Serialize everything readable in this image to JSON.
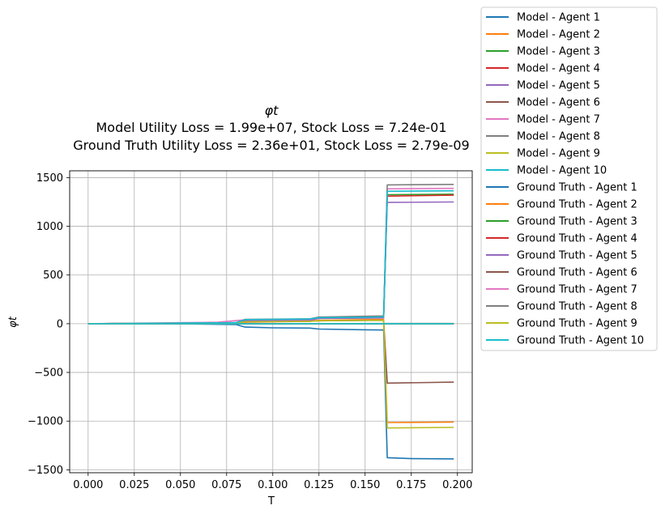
{
  "chart_data": {
    "type": "line",
    "title": "φt",
    "subtitle_lines": [
      "Model Utility Loss = 1.99e+07, Stock Loss = 7.24e-01",
      "Ground Truth Utility Loss = 2.36e+01, Stock Loss = 2.79e-09"
    ],
    "xlabel": "T",
    "ylabel": "φt",
    "xlim": [
      -0.01,
      0.208
    ],
    "ylim": [
      -1530,
      1570
    ],
    "xticks": [
      "0.000",
      "0.025",
      "0.050",
      "0.075",
      "0.100",
      "0.125",
      "0.150",
      "0.175",
      "0.200"
    ],
    "yticks": [
      "−1500",
      "−1000",
      "−500",
      "0",
      "500",
      "1000",
      "1500"
    ],
    "grid": true,
    "legend_position": "outside-right",
    "series": [
      {
        "name": "Model - Agent 1",
        "color": "#1f77b4",
        "points": [
          [
            0,
            0
          ],
          [
            0.05,
            -2
          ],
          [
            0.08,
            -8
          ],
          [
            0.085,
            -35
          ],
          [
            0.1,
            -42
          ],
          [
            0.12,
            -45
          ],
          [
            0.125,
            -55
          ],
          [
            0.15,
            -62
          ],
          [
            0.16,
            -65
          ],
          [
            0.162,
            -1375
          ],
          [
            0.175,
            -1385
          ],
          [
            0.198,
            -1388
          ]
        ]
      },
      {
        "name": "Model - Agent 2",
        "color": "#ff7f0e",
        "points": [
          [
            0,
            0
          ],
          [
            0.08,
            5
          ],
          [
            0.085,
            15
          ],
          [
            0.12,
            25
          ],
          [
            0.125,
            35
          ],
          [
            0.16,
            45
          ],
          [
            0.162,
            -1015
          ],
          [
            0.198,
            -1010
          ]
        ]
      },
      {
        "name": "Model - Agent 3",
        "color": "#2ca02c",
        "points": [
          [
            0,
            0
          ],
          [
            0.08,
            10
          ],
          [
            0.085,
            40
          ],
          [
            0.12,
            45
          ],
          [
            0.125,
            55
          ],
          [
            0.16,
            60
          ],
          [
            0.162,
            1325
          ],
          [
            0.198,
            1330
          ]
        ]
      },
      {
        "name": "Model - Agent 4",
        "color": "#d62728",
        "points": [
          [
            0,
            0
          ],
          [
            0.08,
            10
          ],
          [
            0.085,
            35
          ],
          [
            0.12,
            40
          ],
          [
            0.125,
            60
          ],
          [
            0.16,
            65
          ],
          [
            0.162,
            1310
          ],
          [
            0.198,
            1320
          ]
        ]
      },
      {
        "name": "Model - Agent 5",
        "color": "#9467bd",
        "points": [
          [
            0,
            0
          ],
          [
            0.08,
            8
          ],
          [
            0.085,
            30
          ],
          [
            0.12,
            35
          ],
          [
            0.125,
            55
          ],
          [
            0.16,
            60
          ],
          [
            0.162,
            1245
          ],
          [
            0.198,
            1250
          ]
        ]
      },
      {
        "name": "Model - Agent 6",
        "color": "#8c564b",
        "points": [
          [
            0,
            0
          ],
          [
            0.08,
            12
          ],
          [
            0.085,
            20
          ],
          [
            0.12,
            25
          ],
          [
            0.125,
            30
          ],
          [
            0.16,
            35
          ],
          [
            0.162,
            -610
          ],
          [
            0.198,
            -600
          ]
        ]
      },
      {
        "name": "Model - Agent 7",
        "color": "#e377c2",
        "points": [
          [
            0,
            0
          ],
          [
            0.07,
            15
          ],
          [
            0.085,
            40
          ],
          [
            0.12,
            45
          ],
          [
            0.125,
            65
          ],
          [
            0.16,
            75
          ],
          [
            0.162,
            1385
          ],
          [
            0.198,
            1390
          ]
        ]
      },
      {
        "name": "Model - Agent 8",
        "color": "#7f7f7f",
        "points": [
          [
            0,
            0
          ],
          [
            0.08,
            10
          ],
          [
            0.085,
            45
          ],
          [
            0.12,
            50
          ],
          [
            0.125,
            68
          ],
          [
            0.16,
            80
          ],
          [
            0.162,
            1425
          ],
          [
            0.198,
            1430
          ]
        ]
      },
      {
        "name": "Model - Agent 9",
        "color": "#bcbd22",
        "points": [
          [
            0,
            0
          ],
          [
            0.08,
            5
          ],
          [
            0.085,
            20
          ],
          [
            0.12,
            25
          ],
          [
            0.125,
            30
          ],
          [
            0.16,
            35
          ],
          [
            0.162,
            -1070
          ],
          [
            0.198,
            -1065
          ]
        ]
      },
      {
        "name": "Model - Agent 10",
        "color": "#17becf",
        "points": [
          [
            0,
            0
          ],
          [
            0.08,
            10
          ],
          [
            0.085,
            42
          ],
          [
            0.12,
            48
          ],
          [
            0.125,
            62
          ],
          [
            0.16,
            70
          ],
          [
            0.162,
            1360
          ],
          [
            0.198,
            1365
          ]
        ]
      },
      {
        "name": "Ground Truth - Agent 1",
        "color": "#1f77b4",
        "points": [
          [
            0,
            0
          ],
          [
            0.198,
            -1
          ]
        ]
      },
      {
        "name": "Ground Truth - Agent 2",
        "color": "#ff7f0e",
        "points": [
          [
            0,
            0
          ],
          [
            0.198,
            1
          ]
        ]
      },
      {
        "name": "Ground Truth - Agent 3",
        "color": "#2ca02c",
        "points": [
          [
            0,
            0
          ],
          [
            0.198,
            2
          ]
        ]
      },
      {
        "name": "Ground Truth - Agent 4",
        "color": "#d62728",
        "points": [
          [
            0,
            0
          ],
          [
            0.198,
            -2
          ]
        ]
      },
      {
        "name": "Ground Truth - Agent 5",
        "color": "#9467bd",
        "points": [
          [
            0,
            0
          ],
          [
            0.198,
            1
          ]
        ]
      },
      {
        "name": "Ground Truth - Agent 6",
        "color": "#8c564b",
        "points": [
          [
            0,
            0
          ],
          [
            0.198,
            -1
          ]
        ]
      },
      {
        "name": "Ground Truth - Agent 7",
        "color": "#e377c2",
        "points": [
          [
            0,
            0
          ],
          [
            0.198,
            2
          ]
        ]
      },
      {
        "name": "Ground Truth - Agent 8",
        "color": "#7f7f7f",
        "points": [
          [
            0,
            0
          ],
          [
            0.198,
            -2
          ]
        ]
      },
      {
        "name": "Ground Truth - Agent 9",
        "color": "#bcbd22",
        "points": [
          [
            0,
            0
          ],
          [
            0.198,
            1
          ]
        ]
      },
      {
        "name": "Ground Truth - Agent 10",
        "color": "#17becf",
        "points": [
          [
            0,
            0
          ],
          [
            0.198,
            0
          ]
        ]
      }
    ]
  }
}
